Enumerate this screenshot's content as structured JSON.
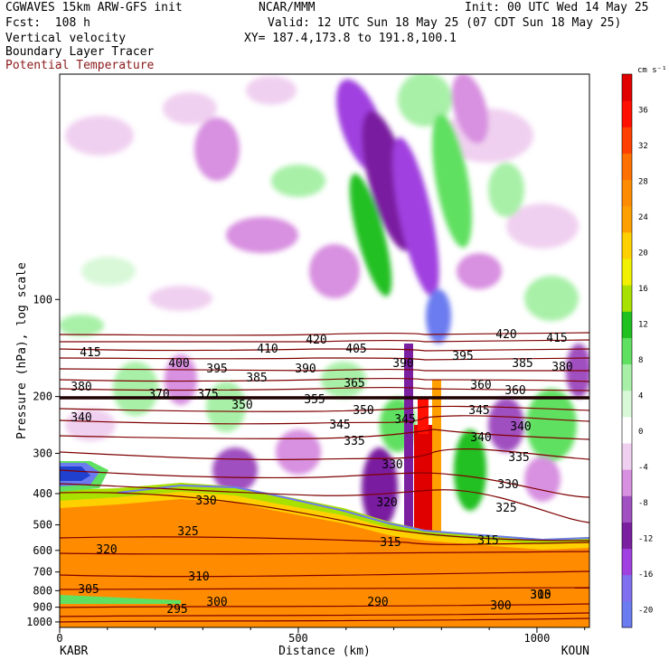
{
  "header": {
    "model": "CGWAVES 15km ARW-GFS init",
    "org": "NCAR/MMM",
    "init": "Init: 00 UTC Wed 14 May 25",
    "fcst": "Fcst:  108 h",
    "valid": "Valid: 12 UTC Sun 18 May 25 (07 CDT Sun 18 May 25)",
    "xy": "XY= 187.4,173.8 to 191.8,100.1",
    "field1": "Vertical velocity",
    "field2": "Boundary Layer Tracer",
    "field3": "Potential Temperature"
  },
  "colors": {
    "theta": "#7f0000",
    "field3_label": "#8b1a1a"
  },
  "chart_data": {
    "type": "heatmap",
    "ylabel": "Pressure (hPa), log scale",
    "xlabel": "Distance (km)",
    "x_ticks": [
      "0",
      "500",
      "1000"
    ],
    "x_tick_values": [
      0,
      500,
      1000
    ],
    "xlim": [
      0,
      1110
    ],
    "y_ticks": [
      "100",
      "200",
      "300",
      "400",
      "500",
      "600",
      "700",
      "800",
      "900",
      "1000"
    ],
    "y_tick_values": [
      100,
      200,
      300,
      400,
      500,
      600,
      700,
      800,
      900,
      1000
    ],
    "ylim": [
      1040,
      20
    ],
    "y_scale": "log",
    "left_station": "KABR",
    "right_station": "KOUN",
    "colorbar": {
      "unit": "cm s⁻¹",
      "tick_labels": [
        "36",
        "32",
        "28",
        "24",
        "20",
        "16",
        "12",
        "8",
        "4",
        "0",
        "-4",
        "-8",
        "-12",
        "-16",
        "-20"
      ],
      "tick_values": [
        36,
        32,
        28,
        24,
        20,
        16,
        12,
        8,
        4,
        0,
        -4,
        -8,
        -12,
        -16,
        -20
      ],
      "min": -22,
      "max": 40,
      "colors": [
        "#6b7bf0",
        "#8070f0",
        "#a040e0",
        "#7a1fa0",
        "#a050c0",
        "#d890e0",
        "#f0d0f0",
        "#ffffff",
        "#d8f8d8",
        "#a8f0a8",
        "#60e060",
        "#20c020",
        "#a8e000",
        "#f0f000",
        "#ffd000",
        "#ffa000",
        "#ff8c00",
        "#ff7000",
        "#ff4000",
        "#ff1000",
        "#e00000"
      ]
    },
    "theta_contour_labels": [
      "415",
      "410",
      "420",
      "405",
      "420",
      "415",
      "400",
      "395",
      "385",
      "390",
      "390",
      "395",
      "385",
      "380",
      "380",
      "370",
      "375",
      "365",
      "360",
      "360",
      "355",
      "350",
      "350",
      "345",
      "340",
      "345",
      "345",
      "340",
      "335",
      "340",
      "335",
      "330",
      "330",
      "330",
      "320",
      "325",
      "325",
      "315",
      "315",
      "320",
      "310",
      "305",
      "300",
      "295",
      "290",
      "300",
      "305",
      "310"
    ]
  }
}
